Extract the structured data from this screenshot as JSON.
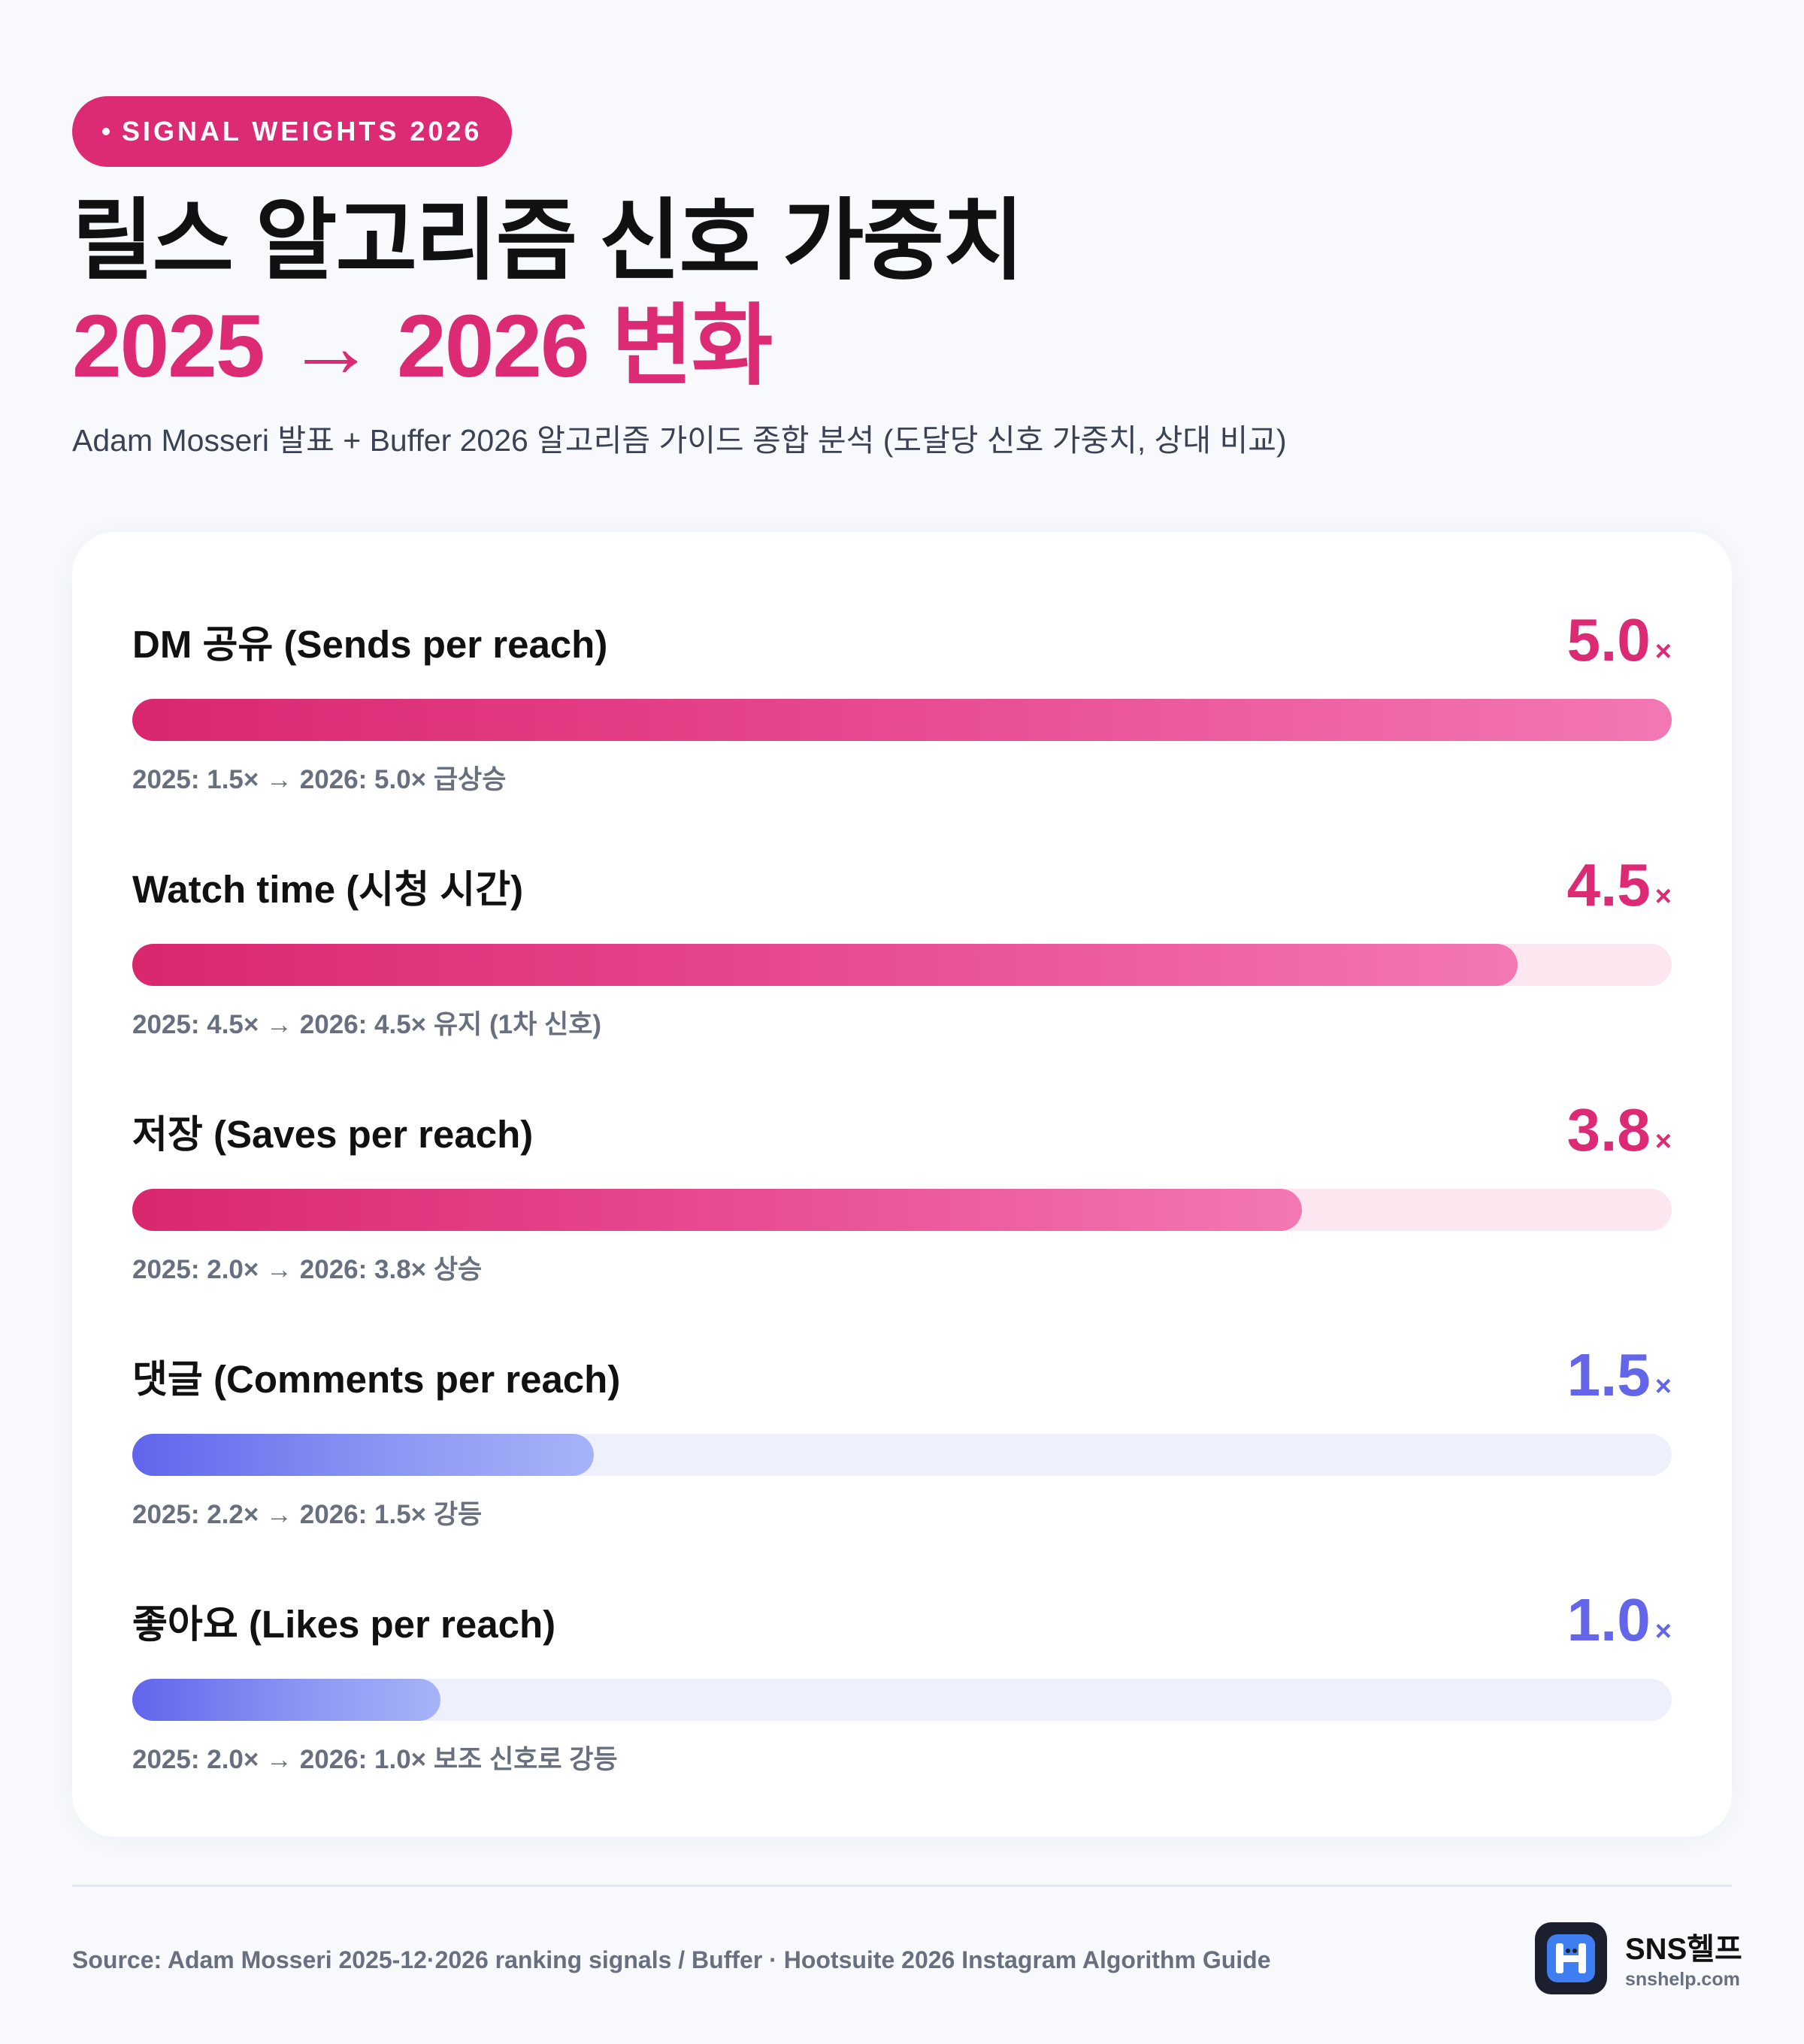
{
  "header": {
    "badge": "SIGNAL WEIGHTS 2026",
    "title_line1": "릴스 알고리즘 신호 가중치",
    "title_line2": "2025 → 2026 변화",
    "subtitle": "Adam Mosseri 발표 + Buffer 2026 알고리즘 가이드 종합 분석 (도달당 신호 가중치, 상대 비교)"
  },
  "chart_data": {
    "type": "bar",
    "orientation": "horizontal",
    "title": "릴스 알고리즘 신호 가중치 2025 → 2026 변화",
    "unit": "×",
    "xlim": [
      0,
      5.0
    ],
    "categories": [
      "DM 공유 (Sends per reach)",
      "Watch time (시청 시간)",
      "저장 (Saves per reach)",
      "댓글 (Comments per reach)",
      "좋아요 (Likes per reach)"
    ],
    "values": [
      5.0,
      4.5,
      3.8,
      1.5,
      1.0
    ],
    "value_labels": [
      "5.0",
      "4.5",
      "3.8",
      "1.5",
      "1.0"
    ],
    "value_suffix": "×",
    "notes": [
      "2025: 1.5× → 2026: 5.0× 급상승",
      "2025: 4.5× → 2026: 4.5× 유지 (1차 신호)",
      "2025: 2.0× → 2026: 3.8× 상승",
      "2025: 2.2× → 2026: 1.5× 강등",
      "2025: 2.0× → 2026: 1.0× 보조 신호로 강등"
    ],
    "colors": [
      "#dc2a74",
      "#dc2a74",
      "#dc2a74",
      "#6366ea",
      "#6366ea"
    ],
    "palette": [
      "pink",
      "pink",
      "pink",
      "blue",
      "blue"
    ]
  },
  "footer": {
    "source": "Source: Adam Mosseri 2025-12·2026 ranking signals / Buffer · Hootsuite 2026 Instagram Algorithm Guide",
    "brand_name": "SNS헬프",
    "brand_url": "snshelp.com"
  }
}
